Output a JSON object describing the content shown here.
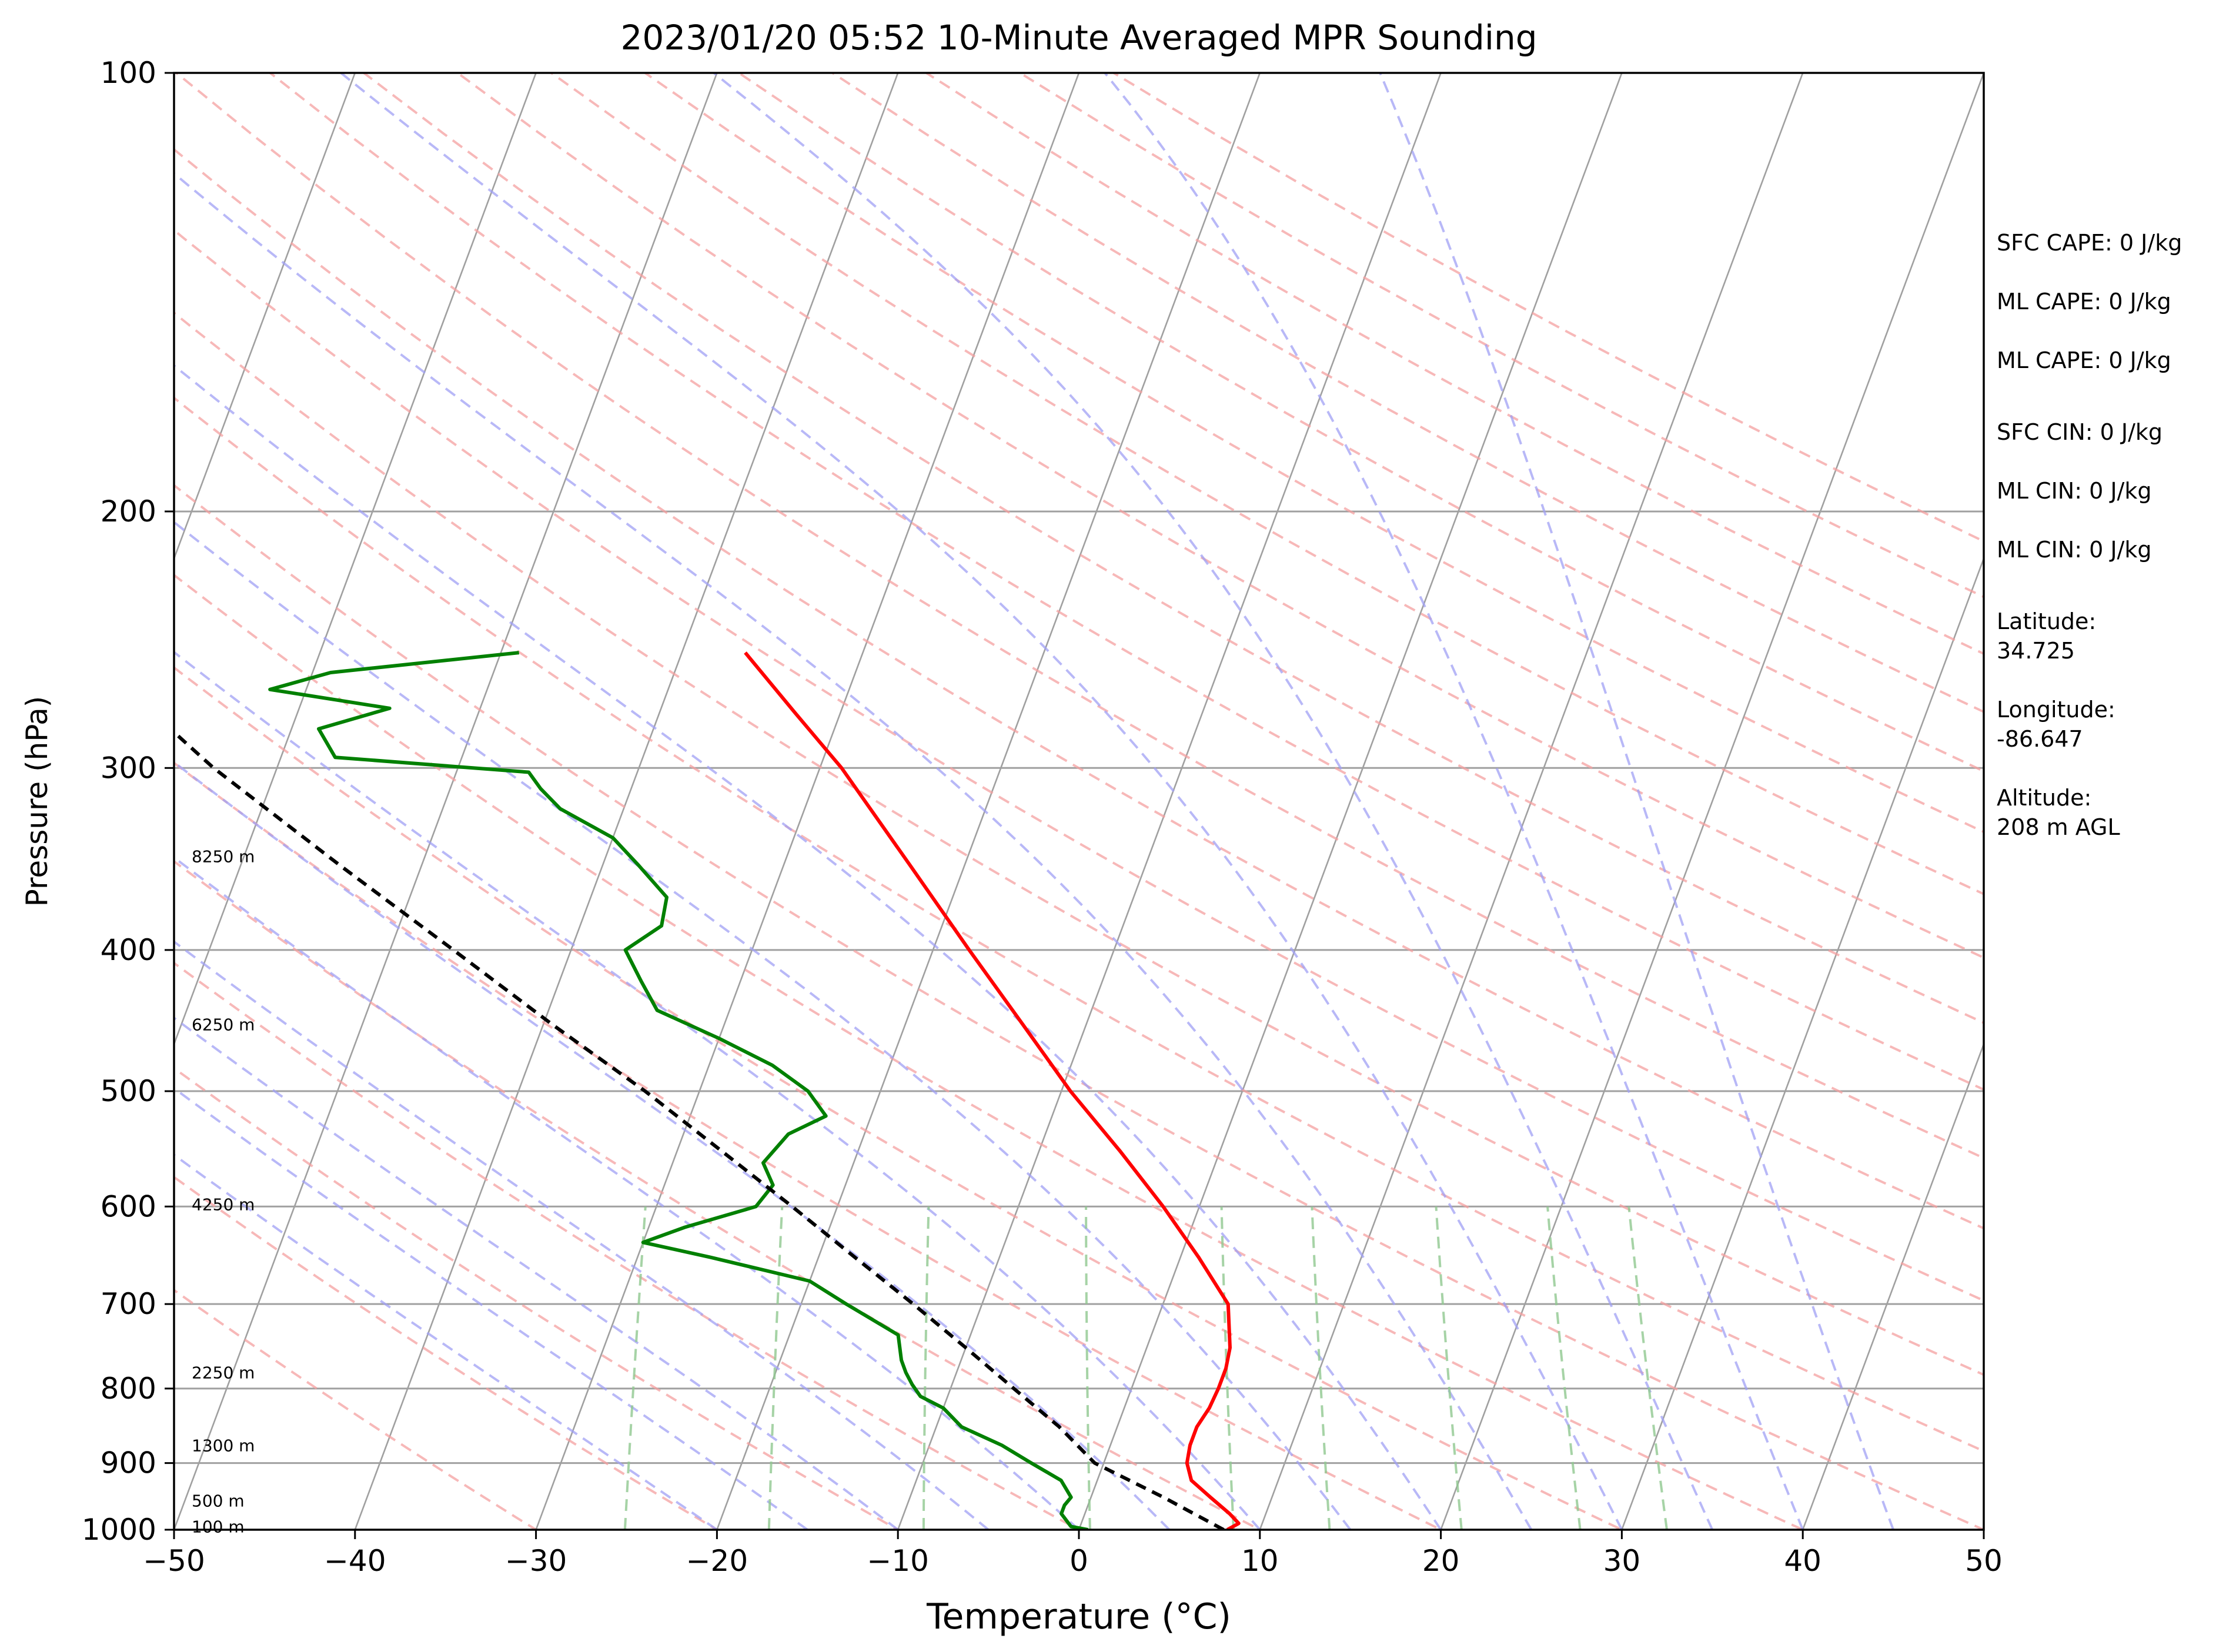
{
  "chart_data": {
    "type": "line",
    "title": "2023/01/20 05:52 10-Minute Averaged MPR Sounding",
    "xlabel": "Temperature (°C)",
    "ylabel": "Pressure (hPa)",
    "xlim": [
      -50,
      50
    ],
    "ylim": [
      1000,
      100
    ],
    "y_scale": "log",
    "skew_t": true,
    "x_ticks": [
      "−50",
      "−40",
      "−30",
      "−20",
      "−10",
      "0",
      "10",
      "20",
      "30",
      "40",
      "50"
    ],
    "x_tick_values": [
      -50,
      -40,
      -30,
      -20,
      -10,
      0,
      10,
      20,
      30,
      40,
      50
    ],
    "y_ticks": [
      100,
      200,
      300,
      400,
      500,
      600,
      700,
      800,
      900,
      1000
    ],
    "grid": "horizontal isobars",
    "background_lines": {
      "isotherms": {
        "color": "#a0a0a0",
        "style": "solid"
      },
      "dry_adiabats": {
        "color": "#f4a0a0",
        "style": "dashed"
      },
      "moist_adiabats": {
        "color": "#a0a0f4",
        "style": "dashed"
      },
      "mixing_ratio_lines": {
        "color": "#90c890",
        "style": "dashed"
      }
    },
    "series": [
      {
        "color": "#ff0000",
        "points": [
          {
            "p": 1000,
            "t": 8.2
          },
          {
            "p": 990,
            "t": 8.7
          },
          {
            "p": 975,
            "t": 8.0
          },
          {
            "p": 950,
            "t": 6.6
          },
          {
            "p": 925,
            "t": 5.2
          },
          {
            "p": 900,
            "t": 4.6
          },
          {
            "p": 875,
            "t": 4.4
          },
          {
            "p": 850,
            "t": 4.4
          },
          {
            "p": 825,
            "t": 4.7
          },
          {
            "p": 800,
            "t": 4.8
          },
          {
            "p": 775,
            "t": 4.8
          },
          {
            "p": 750,
            "t": 4.6
          },
          {
            "p": 700,
            "t": 3.6
          },
          {
            "p": 650,
            "t": 1.0
          },
          {
            "p": 600,
            "t": -2.0
          },
          {
            "p": 550,
            "t": -5.5
          },
          {
            "p": 500,
            "t": -9.5
          },
          {
            "p": 450,
            "t": -13.5
          },
          {
            "p": 400,
            "t": -18.0
          },
          {
            "p": 350,
            "t": -23.0
          },
          {
            "p": 300,
            "t": -28.8
          },
          {
            "p": 275,
            "t": -32.5
          },
          {
            "p": 250,
            "t": -36.5
          }
        ]
      },
      {
        "color": "#008000",
        "points": [
          {
            "p": 1000,
            "t": 0.5
          },
          {
            "p": 995,
            "t": -0.5
          },
          {
            "p": 975,
            "t": -1.3
          },
          {
            "p": 962,
            "t": -1.3
          },
          {
            "p": 950,
            "t": -1.1
          },
          {
            "p": 925,
            "t": -2.0
          },
          {
            "p": 900,
            "t": -4.0
          },
          {
            "p": 875,
            "t": -6.0
          },
          {
            "p": 850,
            "t": -8.6
          },
          {
            "p": 825,
            "t": -10.0
          },
          {
            "p": 810,
            "t": -11.5
          },
          {
            "p": 795,
            "t": -12.2
          },
          {
            "p": 780,
            "t": -12.8
          },
          {
            "p": 765,
            "t": -13.3
          },
          {
            "p": 735,
            "t": -14.0
          },
          {
            "p": 700,
            "t": -17.5
          },
          {
            "p": 675,
            "t": -20.0
          },
          {
            "p": 650,
            "t": -26.0
          },
          {
            "p": 635,
            "t": -30.0
          },
          {
            "p": 620,
            "t": -28.0
          },
          {
            "p": 600,
            "t": -24.5
          },
          {
            "p": 580,
            "t": -24.0
          },
          {
            "p": 560,
            "t": -25.0
          },
          {
            "p": 535,
            "t": -24.2
          },
          {
            "p": 520,
            "t": -22.5
          },
          {
            "p": 500,
            "t": -24.0
          },
          {
            "p": 480,
            "t": -26.5
          },
          {
            "p": 460,
            "t": -30.0
          },
          {
            "p": 440,
            "t": -34.0
          },
          {
            "p": 420,
            "t": -35.5
          },
          {
            "p": 400,
            "t": -37.0
          },
          {
            "p": 385,
            "t": -35.5
          },
          {
            "p": 368,
            "t": -35.8
          },
          {
            "p": 350,
            "t": -38.0
          },
          {
            "p": 335,
            "t": -40.0
          },
          {
            "p": 320,
            "t": -43.5
          },
          {
            "p": 310,
            "t": -45.0
          },
          {
            "p": 302,
            "t": -46.0
          },
          {
            "p": 295,
            "t": -57.0
          },
          {
            "p": 282,
            "t": -58.5
          },
          {
            "p": 273,
            "t": -55.0
          },
          {
            "p": 265,
            "t": -62.0
          },
          {
            "p": 258,
            "t": -59.0
          },
          {
            "p": 250,
            "t": -49.0
          }
        ]
      },
      {
        "color": "#000000",
        "style": "dashed",
        "points": [
          {
            "p": 1000,
            "t": 8.0
          },
          {
            "p": 950,
            "t": 4.0
          },
          {
            "p": 900,
            "t": -0.5
          },
          {
            "p": 850,
            "t": -3.2
          },
          {
            "p": 800,
            "t": -6.5
          },
          {
            "p": 750,
            "t": -10.0
          },
          {
            "p": 700,
            "t": -13.8
          },
          {
            "p": 650,
            "t": -18.0
          },
          {
            "p": 600,
            "t": -22.5
          },
          {
            "p": 550,
            "t": -27.5
          },
          {
            "p": 500,
            "t": -33.0
          },
          {
            "p": 450,
            "t": -39.5
          },
          {
            "p": 400,
            "t": -46.5
          },
          {
            "p": 350,
            "t": -54.5
          },
          {
            "p": 300,
            "t": -63.5
          },
          {
            "p": 275,
            "t": -68.0
          },
          {
            "p": 252,
            "t": -72.5
          }
        ]
      }
    ],
    "height_labels": [
      {
        "text": "100 m",
        "p": 995
      },
      {
        "text": "500 m",
        "p": 955
      },
      {
        "text": "1300 m",
        "p": 875
      },
      {
        "text": "2250 m",
        "p": 780
      },
      {
        "text": "4250 m",
        "p": 598
      },
      {
        "text": "6250 m",
        "p": 450
      },
      {
        "text": "8250 m",
        "p": 345
      }
    ],
    "annotations": [
      "SFC CAPE: 0 J/kg",
      "ML CAPE: 0 J/kg",
      "ML CAPE: 0 J/kg",
      "SFC CIN: 0 J/kg",
      "ML CIN: 0 J/kg",
      "ML CIN: 0 J/kg",
      "Latitude:\n34.725",
      "Longitude:\n-86.647",
      "Altitude:\n208 m AGL"
    ]
  }
}
